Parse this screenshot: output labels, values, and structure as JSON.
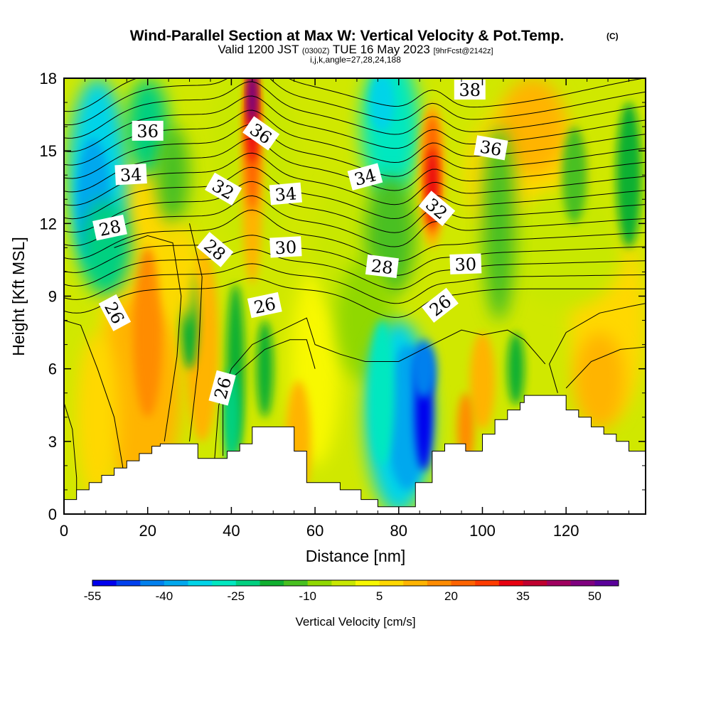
{
  "header": {
    "title": "Wind-Parallel Section at Max W: Vertical Velocity & Pot.Temp.",
    "copyright": "(C)",
    "valid_prefix": "Valid 1200 JST",
    "valid_utc": "(0300Z)",
    "valid_date": "TUE 16 May 2023",
    "forecast_info": "[9hrFcst@2142z]",
    "grid_info": "i,j,k,angle=27,28,24,188"
  },
  "colorbar": {
    "title": "Vertical Velocity [cm/s]",
    "tick_labels": [
      "-55",
      "-40",
      "-25",
      "-10",
      "5",
      "20",
      "35",
      "50"
    ],
    "colors": [
      "#0000ee",
      "#0040ee",
      "#0080ee",
      "#00a8ee",
      "#00d4e8",
      "#00e8c0",
      "#00d080",
      "#10b030",
      "#48c020",
      "#90d800",
      "#c8e800",
      "#f8f800",
      "#ffd800",
      "#ffb400",
      "#ff8c00",
      "#ff6400",
      "#ff3c00",
      "#e80010",
      "#c00030",
      "#a00060",
      "#800080",
      "#5a009a"
    ]
  },
  "chart_data": {
    "type": "heatmap",
    "xlabel": "Distance [nm]",
    "ylabel": "Height [Kft MSL]",
    "xlim": [
      0,
      139
    ],
    "ylim": [
      0,
      18
    ],
    "x_ticks": [
      "0",
      "20",
      "40",
      "60",
      "80",
      "100",
      "120"
    ],
    "y_ticks": [
      "0",
      "3",
      "6",
      "9",
      "12",
      "15",
      "18"
    ],
    "field": "vertical velocity (cm/s), shaded",
    "contours": "potential temperature (C), black lines",
    "terrain_profile": [
      [
        0,
        0.6
      ],
      [
        3,
        0.6
      ],
      [
        3,
        1.0
      ],
      [
        6,
        1.0
      ],
      [
        6,
        1.3
      ],
      [
        9,
        1.3
      ],
      [
        9,
        1.6
      ],
      [
        12,
        1.6
      ],
      [
        12,
        1.9
      ],
      [
        15,
        1.9
      ],
      [
        15,
        2.2
      ],
      [
        18,
        2.2
      ],
      [
        18,
        2.5
      ],
      [
        21,
        2.5
      ],
      [
        21,
        2.8
      ],
      [
        23,
        2.8
      ],
      [
        23,
        2.9
      ],
      [
        32,
        2.9
      ],
      [
        32,
        2.3
      ],
      [
        39,
        2.3
      ],
      [
        39,
        2.6
      ],
      [
        42,
        2.6
      ],
      [
        42,
        2.9
      ],
      [
        45,
        2.9
      ],
      [
        45,
        3.6
      ],
      [
        55,
        3.6
      ],
      [
        55,
        2.6
      ],
      [
        58,
        2.6
      ],
      [
        58,
        1.3
      ],
      [
        66,
        1.3
      ],
      [
        66,
        1.0
      ],
      [
        71,
        1.0
      ],
      [
        71,
        0.6
      ],
      [
        75,
        0.6
      ],
      [
        75,
        0.3
      ],
      [
        84,
        0.3
      ],
      [
        84,
        1.3
      ],
      [
        88,
        1.3
      ],
      [
        88,
        2.6
      ],
      [
        91,
        2.6
      ],
      [
        91,
        2.9
      ],
      [
        96,
        2.9
      ],
      [
        96,
        2.6
      ],
      [
        100,
        2.6
      ],
      [
        100,
        3.3
      ],
      [
        103,
        3.3
      ],
      [
        103,
        3.9
      ],
      [
        106,
        3.9
      ],
      [
        106,
        4.3
      ],
      [
        109,
        4.3
      ],
      [
        109,
        4.6
      ],
      [
        110,
        4.6
      ],
      [
        110,
        4.9
      ],
      [
        120,
        4.9
      ],
      [
        120,
        4.3
      ],
      [
        123,
        4.3
      ],
      [
        123,
        4.0
      ],
      [
        126,
        4.0
      ],
      [
        126,
        3.6
      ],
      [
        129,
        3.6
      ],
      [
        129,
        3.3
      ],
      [
        132,
        3.3
      ],
      [
        132,
        3.0
      ],
      [
        135,
        3.0
      ],
      [
        135,
        2.6
      ],
      [
        139,
        2.6
      ]
    ],
    "features": [
      {
        "type": "updraft",
        "x": 45,
        "y_bottom": 11.5,
        "y_top": 18,
        "w_peak": 50
      },
      {
        "type": "updraft",
        "x": 88,
        "y_bottom": 11,
        "y_top": 17,
        "w_peak": 42
      },
      {
        "type": "updraft",
        "x": 20,
        "y_bottom": 4,
        "y_top": 12,
        "w_peak": 25
      },
      {
        "type": "downdraft",
        "x": 87,
        "y_bottom": 2.5,
        "y_top": 7,
        "w_peak": -55
      },
      {
        "type": "downdraft",
        "x": 78,
        "y_bottom": 1,
        "y_top": 16,
        "w_peak": -30
      },
      {
        "type": "downdraft",
        "x": 8,
        "y_bottom": 10,
        "y_top": 16,
        "w_peak": -28
      },
      {
        "type": "downdraft",
        "x": 41,
        "y_bottom": 2.5,
        "y_top": 9,
        "w_peak": -18
      }
    ],
    "contour_labels": [
      "36",
      "34",
      "28",
      "26",
      "26",
      "32",
      "28",
      "36",
      "34",
      "30",
      "26",
      "34",
      "28",
      "32",
      "26",
      "30",
      "38",
      "36"
    ]
  }
}
